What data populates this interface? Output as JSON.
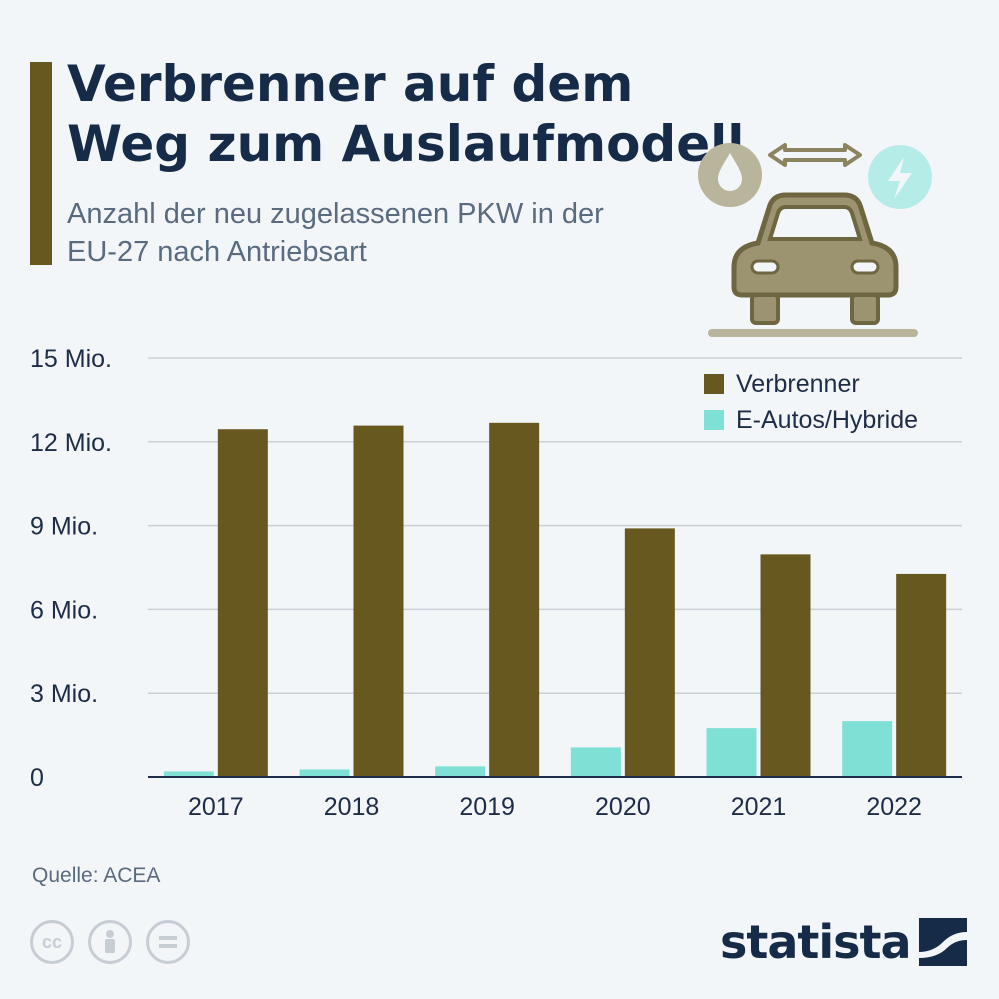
{
  "header": {
    "title": "Verbrenner auf dem Weg zum Auslaufmodell",
    "subtitle": "Anzahl der neu zugelassenen PKW in der EU-27 nach Antriebsart"
  },
  "colors": {
    "verbrenner": "#66581e",
    "e_autos": "#7fe0d6",
    "gridline": "#c9d0d8",
    "axis": "#1d2d47"
  },
  "chart_data": {
    "type": "bar",
    "categories": [
      "2017",
      "2018",
      "2019",
      "2020",
      "2021",
      "2022"
    ],
    "series": [
      {
        "name": "E-Autos/Hybride",
        "values": [
          0.2,
          0.27,
          0.38,
          1.06,
          1.75,
          2.0
        ]
      },
      {
        "name": "Verbrenner",
        "values": [
          12.45,
          12.58,
          12.68,
          8.9,
          7.97,
          7.27
        ]
      }
    ],
    "ylim": [
      0,
      15
    ],
    "yticks": [
      0,
      3,
      6,
      9,
      12,
      15
    ],
    "ytick_labels": [
      "0",
      "3 Mio.",
      "6 Mio.",
      "9 Mio.",
      "12 Mio.",
      "15 Mio."
    ],
    "grid": true,
    "legend_position": "top-right",
    "legend": [
      "Verbrenner",
      "E-Autos/Hybride"
    ]
  },
  "footer": {
    "source": "Quelle: ACEA",
    "brand": "statista",
    "license_icons": [
      "cc-icon",
      "by-icon",
      "nd-icon"
    ]
  }
}
